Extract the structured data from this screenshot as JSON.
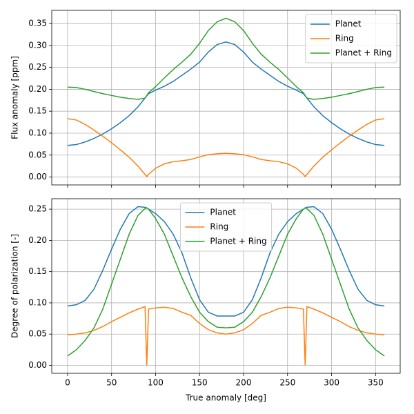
{
  "chart_data": [
    {
      "type": "line",
      "ylabel": "Flux anomaly [ppm]",
      "shared_x": true,
      "x": [
        0,
        10,
        20,
        30,
        40,
        50,
        60,
        70,
        80,
        88,
        90,
        92,
        100,
        110,
        120,
        130,
        140,
        150,
        160,
        170,
        180,
        190,
        200,
        210,
        220,
        230,
        240,
        250,
        260,
        268,
        270,
        272,
        280,
        290,
        300,
        310,
        320,
        330,
        340,
        350,
        360
      ],
      "series": [
        {
          "name": "Planet",
          "color": "#1f77b4",
          "values": [
            0.072,
            0.074,
            0.08,
            0.088,
            0.098,
            0.11,
            0.124,
            0.14,
            0.16,
            0.18,
            0.185,
            0.19,
            0.198,
            0.207,
            0.218,
            0.232,
            0.246,
            0.262,
            0.285,
            0.302,
            0.308,
            0.302,
            0.285,
            0.262,
            0.246,
            0.232,
            0.218,
            0.207,
            0.198,
            0.19,
            0.185,
            0.18,
            0.16,
            0.14,
            0.124,
            0.11,
            0.098,
            0.088,
            0.08,
            0.074,
            0.072
          ]
        },
        {
          "name": "Ring",
          "color": "#ff7f0e",
          "values": [
            0.133,
            0.13,
            0.12,
            0.107,
            0.093,
            0.078,
            0.062,
            0.045,
            0.025,
            0.006,
            0.001,
            0.006,
            0.02,
            0.03,
            0.035,
            0.037,
            0.04,
            0.046,
            0.051,
            0.053,
            0.054,
            0.053,
            0.051,
            0.046,
            0.04,
            0.037,
            0.035,
            0.03,
            0.02,
            0.006,
            0.001,
            0.006,
            0.025,
            0.045,
            0.062,
            0.078,
            0.093,
            0.107,
            0.12,
            0.13,
            0.133
          ]
        },
        {
          "name": "Planet + Ring",
          "color": "#2ca02c",
          "values": [
            0.205,
            0.204,
            0.2,
            0.195,
            0.19,
            0.186,
            0.182,
            0.179,
            0.177,
            0.18,
            0.186,
            0.192,
            0.206,
            0.226,
            0.245,
            0.262,
            0.28,
            0.305,
            0.334,
            0.354,
            0.362,
            0.354,
            0.334,
            0.305,
            0.28,
            0.262,
            0.245,
            0.226,
            0.206,
            0.192,
            0.186,
            0.18,
            0.177,
            0.179,
            0.182,
            0.186,
            0.19,
            0.195,
            0.2,
            0.204,
            0.205
          ]
        }
      ],
      "xlim": [
        -18,
        378
      ],
      "xticks": [
        0,
        50,
        100,
        150,
        200,
        250,
        300,
        350
      ],
      "ylim": [
        -0.018,
        0.38
      ],
      "yticks": [
        {
          "value": 0,
          "label": "0.00"
        },
        {
          "value": 0.05,
          "label": "0.05"
        },
        {
          "value": 0.1,
          "label": "0.10"
        },
        {
          "value": 0.15,
          "label": "0.15"
        },
        {
          "value": 0.2,
          "label": "0.20"
        },
        {
          "value": 0.25,
          "label": "0.25"
        },
        {
          "value": 0.3,
          "label": "0.30"
        },
        {
          "value": 0.35,
          "label": "0.35"
        }
      ],
      "grid": true,
      "legend": "upper right"
    },
    {
      "type": "line",
      "xlabel": "True anomaly [deg]",
      "ylabel": "Degree of polarization [-]",
      "x": [
        0,
        10,
        20,
        30,
        40,
        50,
        60,
        70,
        80,
        88,
        90,
        92,
        100,
        110,
        120,
        130,
        140,
        150,
        160,
        170,
        180,
        190,
        200,
        210,
        220,
        230,
        240,
        250,
        260,
        268,
        270,
        272,
        280,
        290,
        300,
        310,
        320,
        330,
        340,
        350,
        360
      ],
      "series": [
        {
          "name": "Planet",
          "color": "#1f77b4",
          "values": [
            0.095,
            0.097,
            0.104,
            0.122,
            0.152,
            0.186,
            0.218,
            0.243,
            0.254,
            0.253,
            0.252,
            0.25,
            0.243,
            0.23,
            0.21,
            0.18,
            0.14,
            0.105,
            0.085,
            0.079,
            0.079,
            0.079,
            0.085,
            0.105,
            0.14,
            0.18,
            0.21,
            0.23,
            0.243,
            0.25,
            0.252,
            0.253,
            0.254,
            0.243,
            0.218,
            0.186,
            0.152,
            0.122,
            0.104,
            0.097,
            0.095
          ]
        },
        {
          "name": "Ring",
          "color": "#ff7f0e",
          "values": [
            0.049,
            0.05,
            0.052,
            0.056,
            0.062,
            0.07,
            0.077,
            0.084,
            0.09,
            0.094,
            0,
            0.09,
            0.092,
            0.093,
            0.091,
            0.085,
            0.08,
            0.067,
            0.057,
            0.052,
            0.05,
            0.052,
            0.057,
            0.067,
            0.08,
            0.085,
            0.091,
            0.093,
            0.092,
            0.09,
            0,
            0.094,
            0.09,
            0.084,
            0.077,
            0.07,
            0.062,
            0.056,
            0.052,
            0.05,
            0.049
          ]
        },
        {
          "name": "Planet + Ring",
          "color": "#2ca02c",
          "values": [
            0.015,
            0.025,
            0.04,
            0.06,
            0.09,
            0.13,
            0.17,
            0.21,
            0.24,
            0.251,
            0.252,
            0.25,
            0.235,
            0.21,
            0.175,
            0.14,
            0.11,
            0.085,
            0.07,
            0.061,
            0.06,
            0.061,
            0.07,
            0.085,
            0.11,
            0.14,
            0.175,
            0.21,
            0.235,
            0.25,
            0.252,
            0.251,
            0.24,
            0.21,
            0.17,
            0.13,
            0.09,
            0.06,
            0.04,
            0.025,
            0.015
          ]
        }
      ],
      "xlim": [
        -18,
        378
      ],
      "xticks": [
        0,
        50,
        100,
        150,
        200,
        250,
        300,
        350
      ],
      "ylim": [
        -0.0127,
        0.2667
      ],
      "yticks": [
        {
          "value": 0,
          "label": "0.00"
        },
        {
          "value": 0.05,
          "label": "0.05"
        },
        {
          "value": 0.1,
          "label": "0.10"
        },
        {
          "value": 0.15,
          "label": "0.15"
        },
        {
          "value": 0.2,
          "label": "0.20"
        },
        {
          "value": 0.25,
          "label": "0.25"
        }
      ],
      "grid": true,
      "legend": "upper center"
    }
  ]
}
